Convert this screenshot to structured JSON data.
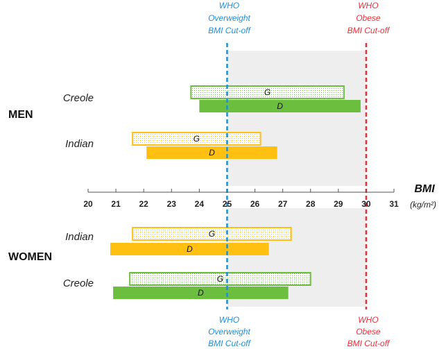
{
  "colors": {
    "overweight": "#1f8fd6",
    "obese": "#e8303a",
    "shade": "#eeeeee",
    "creole": "#6cbf3e",
    "indian": "#ffc012",
    "axis": "#555555"
  },
  "chart_data": {
    "type": "bar",
    "orientation": "horizontal-range",
    "xlabel": "BMI",
    "xunit": "(kg/m²)",
    "xlim": [
      20,
      31
    ],
    "xticks": [
      20,
      21,
      22,
      23,
      24,
      25,
      26,
      27,
      28,
      29,
      30,
      31
    ],
    "shaded_range": [
      25,
      30
    ],
    "reference_lines": [
      {
        "x": 25,
        "color": "#1f8fd6",
        "lines": [
          "WHO",
          "Overweight",
          "BMI Cut-off"
        ]
      },
      {
        "x": 30,
        "color": "#e8303a",
        "lines": [
          "WHO",
          "Obese",
          "BMI Cut-off"
        ]
      }
    ],
    "groups": [
      {
        "label": "MEN",
        "sets": [
          {
            "ethnicity": "Creole",
            "color_key": "creole",
            "bars": [
              {
                "label": "G",
                "start": 23.7,
                "end": 29.2,
                "style": "dotted"
              },
              {
                "label": "D",
                "start": 24.0,
                "end": 29.8,
                "style": "solid"
              }
            ]
          },
          {
            "ethnicity": "Indian",
            "color_key": "indian",
            "bars": [
              {
                "label": "G",
                "start": 21.6,
                "end": 26.2,
                "style": "dotted"
              },
              {
                "label": "D",
                "start": 22.1,
                "end": 26.8,
                "style": "solid"
              }
            ]
          }
        ]
      },
      {
        "label": "WOMEN",
        "sets": [
          {
            "ethnicity": "Indian",
            "color_key": "indian",
            "bars": [
              {
                "label": "G",
                "start": 21.6,
                "end": 27.3,
                "style": "dotted"
              },
              {
                "label": "D",
                "start": 20.8,
                "end": 26.5,
                "style": "solid"
              }
            ]
          },
          {
            "ethnicity": "Creole",
            "color_key": "creole",
            "bars": [
              {
                "label": "G",
                "start": 21.5,
                "end": 28.0,
                "style": "dotted"
              },
              {
                "label": "D",
                "start": 20.9,
                "end": 27.2,
                "style": "solid"
              }
            ]
          }
        ]
      }
    ]
  }
}
